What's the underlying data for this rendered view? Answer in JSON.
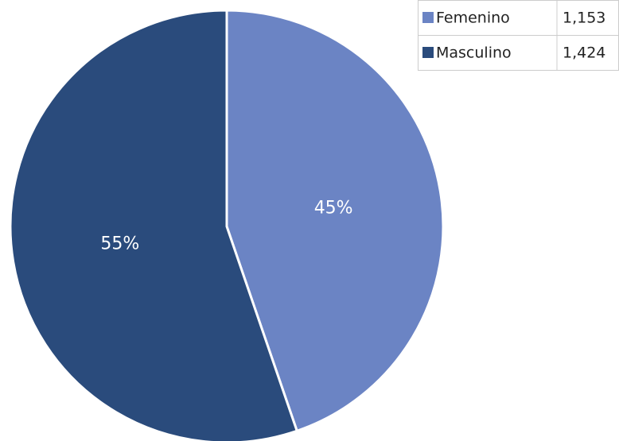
{
  "chart_data": {
    "type": "pie",
    "categories": [
      "Femenino",
      "Masculino"
    ],
    "values": [
      1153,
      1424
    ],
    "value_labels": [
      "1,153",
      "1,424"
    ],
    "percent_labels": [
      "45%",
      "55%"
    ],
    "colors": [
      "#6b84c4",
      "#2a4b7c"
    ],
    "legend": "top-right"
  }
}
